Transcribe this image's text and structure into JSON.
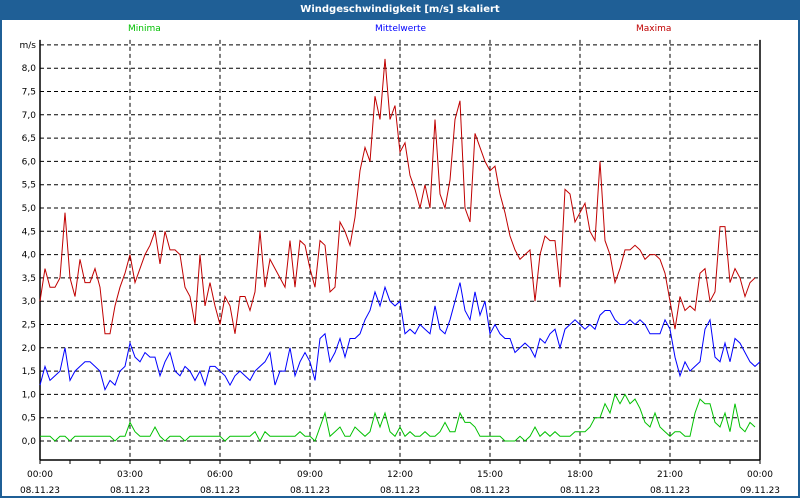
{
  "window": {
    "title": "Windgeschwindigkeit [m/s] skaliert"
  },
  "chart_data": {
    "type": "line",
    "title": "Windgeschwindigkeit [m/s] skaliert",
    "ylabel": "m/s",
    "ylim": [
      0,
      8.5
    ],
    "yticks": [
      "0,0",
      "0,5",
      "1,0",
      "1,5",
      "2,0",
      "2,5",
      "3,0",
      "3,5",
      "4,0",
      "4,5",
      "5,0",
      "5,5",
      "6,0",
      "6,5",
      "7,0",
      "7,5",
      "8,0"
    ],
    "x_interval_minutes": 10,
    "x_range_hours": [
      0,
      24
    ],
    "xticks": [
      {
        "time": "00:00",
        "date": "08.11.23"
      },
      {
        "time": "03:00",
        "date": "08.11.23"
      },
      {
        "time": "06:00",
        "date": "08.11.23"
      },
      {
        "time": "09:00",
        "date": "08.11.23"
      },
      {
        "time": "12:00",
        "date": "08.11.23"
      },
      {
        "time": "15:00",
        "date": "08.11.23"
      },
      {
        "time": "18:00",
        "date": "08.11.23"
      },
      {
        "time": "21:00",
        "date": "08.11.23"
      },
      {
        "time": "00:00",
        "date": "09.11.23"
      }
    ],
    "grid": true,
    "legend_placement": "top",
    "series": [
      {
        "name": "Minima",
        "color": "#00c000",
        "values": [
          0.1,
          0.1,
          0.1,
          0.0,
          0.1,
          0.1,
          0.0,
          0.1,
          0.1,
          0.1,
          0.1,
          0.1,
          0.1,
          0.1,
          0.1,
          0.0,
          0.1,
          0.1,
          0.4,
          0.2,
          0.1,
          0.1,
          0.1,
          0.3,
          0.1,
          0.0,
          0.1,
          0.1,
          0.1,
          0.0,
          0.1,
          0.1,
          0.1,
          0.1,
          0.1,
          0.1,
          0.1,
          0.0,
          0.1,
          0.1,
          0.1,
          0.1,
          0.1,
          0.2,
          0.0,
          0.2,
          0.1,
          0.1,
          0.1,
          0.1,
          0.1,
          0.1,
          0.2,
          0.1,
          0.1,
          0.0,
          0.3,
          0.6,
          0.1,
          0.2,
          0.3,
          0.1,
          0.1,
          0.3,
          0.2,
          0.1,
          0.2,
          0.6,
          0.3,
          0.6,
          0.2,
          0.1,
          0.3,
          0.1,
          0.2,
          0.1,
          0.1,
          0.2,
          0.1,
          0.1,
          0.2,
          0.4,
          0.2,
          0.2,
          0.6,
          0.4,
          0.4,
          0.3,
          0.1,
          0.1,
          0.1,
          0.1,
          0.1,
          0.0,
          0.0,
          0.0,
          0.1,
          0.0,
          0.1,
          0.3,
          0.1,
          0.2,
          0.1,
          0.2,
          0.1,
          0.1,
          0.1,
          0.2,
          0.2,
          0.2,
          0.3,
          0.5,
          0.5,
          0.8,
          0.6,
          1.0,
          0.8,
          1.0,
          0.8,
          0.9,
          0.7,
          0.4,
          0.3,
          0.6,
          0.3,
          0.2,
          0.1,
          0.2,
          0.2,
          0.1,
          0.1,
          0.6,
          0.9,
          0.8,
          0.8,
          0.4,
          0.3,
          0.6,
          0.2,
          0.8,
          0.3,
          0.2,
          0.4,
          0.3
        ]
      },
      {
        "name": "Mittelwerte",
        "color": "#0000ff",
        "values": [
          1.2,
          1.6,
          1.3,
          1.4,
          1.5,
          2.0,
          1.3,
          1.5,
          1.6,
          1.7,
          1.7,
          1.6,
          1.5,
          1.1,
          1.3,
          1.2,
          1.5,
          1.6,
          2.1,
          1.8,
          1.7,
          1.9,
          1.8,
          1.8,
          1.4,
          1.7,
          1.9,
          1.5,
          1.4,
          1.6,
          1.5,
          1.3,
          1.5,
          1.2,
          1.6,
          1.6,
          1.5,
          1.4,
          1.2,
          1.4,
          1.5,
          1.4,
          1.3,
          1.5,
          1.6,
          1.7,
          1.9,
          1.2,
          1.5,
          1.5,
          2.0,
          1.4,
          1.7,
          1.9,
          1.7,
          1.3,
          2.2,
          2.3,
          1.7,
          1.9,
          2.2,
          1.8,
          2.2,
          2.2,
          2.3,
          2.6,
          2.8,
          3.2,
          2.9,
          3.3,
          3.0,
          2.9,
          3.0,
          2.3,
          2.4,
          2.3,
          2.5,
          2.4,
          2.3,
          2.9,
          2.4,
          2.3,
          2.6,
          3.0,
          3.4,
          2.8,
          2.6,
          3.2,
          2.7,
          3.0,
          2.3,
          2.5,
          2.3,
          2.2,
          2.2,
          1.9,
          2.0,
          2.1,
          2.0,
          1.8,
          2.2,
          2.1,
          2.3,
          2.4,
          2.0,
          2.4,
          2.5,
          2.6,
          2.5,
          2.4,
          2.5,
          2.4,
          2.7,
          2.8,
          2.8,
          2.6,
          2.5,
          2.5,
          2.6,
          2.5,
          2.6,
          2.5,
          2.3,
          2.3,
          2.3,
          2.6,
          2.4,
          1.8,
          1.4,
          1.7,
          1.5,
          1.6,
          1.7,
          2.4,
          2.6,
          1.8,
          1.7,
          2.1,
          1.7,
          2.2,
          2.1,
          1.9,
          1.7,
          1.6,
          1.7
        ]
      },
      {
        "name": "Maxima",
        "color": "#c00000",
        "values": [
          3.0,
          3.7,
          3.3,
          3.3,
          3.5,
          4.9,
          3.5,
          3.1,
          3.9,
          3.4,
          3.4,
          3.7,
          3.3,
          2.3,
          2.3,
          2.9,
          3.3,
          3.6,
          4.0,
          3.4,
          3.7,
          4.0,
          4.2,
          4.5,
          3.8,
          4.5,
          4.1,
          4.1,
          4.0,
          3.3,
          3.1,
          2.5,
          4.0,
          2.9,
          3.4,
          2.9,
          2.5,
          3.1,
          2.9,
          2.3,
          3.1,
          3.1,
          2.8,
          3.2,
          4.5,
          3.3,
          3.9,
          3.7,
          3.5,
          3.3,
          4.3,
          3.3,
          4.3,
          4.2,
          3.7,
          3.3,
          4.3,
          4.2,
          3.2,
          3.3,
          4.7,
          4.5,
          4.2,
          4.8,
          5.8,
          6.3,
          6.0,
          7.4,
          6.9,
          8.2,
          6.9,
          7.2,
          6.2,
          6.4,
          5.7,
          5.4,
          5.0,
          5.5,
          5.0,
          6.9,
          5.3,
          5.0,
          5.6,
          6.9,
          7.3,
          5.0,
          4.7,
          6.6,
          6.3,
          6.0,
          5.8,
          5.9,
          5.3,
          4.9,
          4.4,
          4.1,
          3.9,
          4.0,
          4.1,
          3.0,
          4.0,
          4.4,
          4.3,
          4.3,
          3.3,
          5.4,
          5.3,
          4.7,
          4.9,
          5.1,
          4.5,
          4.3,
          6.0,
          4.3,
          4.0,
          3.4,
          3.7,
          4.1,
          4.1,
          4.2,
          4.1,
          3.9,
          4.0,
          4.0,
          3.9,
          3.6,
          3.0,
          2.4,
          3.1,
          2.8,
          2.9,
          2.8,
          3.6,
          3.7,
          3.0,
          3.2,
          4.6,
          4.6,
          3.4,
          3.7,
          3.5,
          3.1,
          3.4,
          3.5
        ]
      }
    ]
  }
}
